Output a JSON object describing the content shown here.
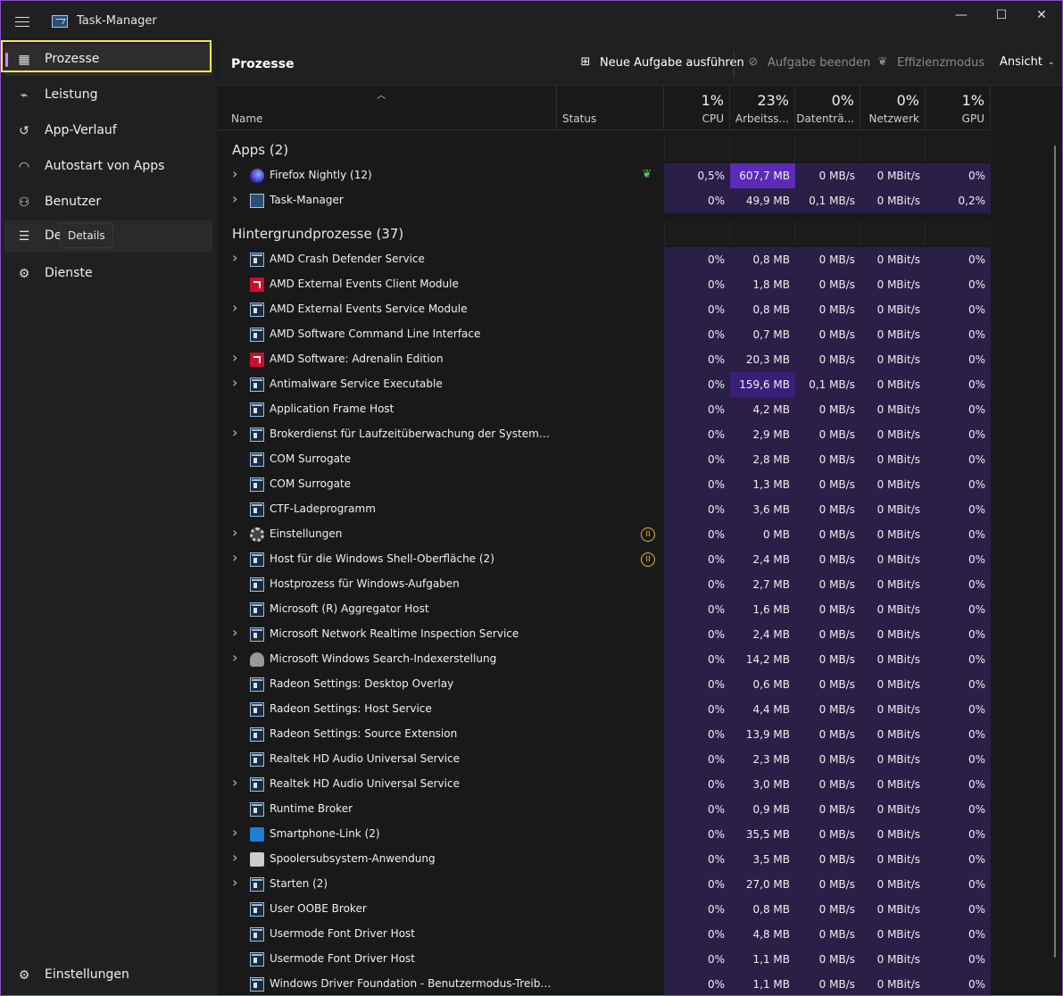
{
  "window": {
    "title": "Task-Manager",
    "minimize": "—",
    "maximize": "☐",
    "close": "✕"
  },
  "sidebar": {
    "items": [
      {
        "label": "Prozesse",
        "icon": "processes-icon"
      },
      {
        "label": "Leistung",
        "icon": "performance-icon"
      },
      {
        "label": "App-Verlauf",
        "icon": "app-history-icon"
      },
      {
        "label": "Autostart von Apps",
        "icon": "startup-icon"
      },
      {
        "label": "Benutzer",
        "icon": "users-icon"
      },
      {
        "label": "De",
        "icon": "details-icon"
      },
      {
        "label": "Dienste",
        "icon": "services-icon"
      }
    ],
    "tooltip": "Details",
    "settings": "Einstellungen"
  },
  "toolbar": {
    "title": "Prozesse",
    "new_task": "Neue Aufgabe ausführen",
    "end_task": "Aufgabe beenden",
    "efficiency": "Effizienzmodus",
    "view": "Ansicht"
  },
  "columns": {
    "name": "Name",
    "status": "Status",
    "cpu": {
      "pct": "1%",
      "label": "CPU"
    },
    "mem": {
      "pct": "23%",
      "label": "Arbeitss..."
    },
    "disk": {
      "pct": "0%",
      "label": "Datenträ..."
    },
    "net": {
      "pct": "0%",
      "label": "Netzwerk"
    },
    "gpu": {
      "pct": "1%",
      "label": "GPU"
    }
  },
  "groups": {
    "apps": "Apps (2)",
    "background": "Hintergrundprozesse (37)"
  },
  "apps": [
    {
      "name": "Firefox Nightly (12)",
      "icon": "ff",
      "expand": true,
      "status": "eco",
      "cpu": "0,5%",
      "mem": "607,7 MB",
      "disk": "0 MB/s",
      "net": "0 MBit/s",
      "gpu": "0%"
    },
    {
      "name": "Task-Manager",
      "icon": "tm",
      "expand": true,
      "status": "",
      "cpu": "0%",
      "mem": "49,9 MB",
      "disk": "0,1 MB/s",
      "net": "0 MBit/s",
      "gpu": "0,2%"
    }
  ],
  "background": [
    {
      "name": "AMD Crash Defender Service",
      "icon": "svc",
      "expand": true,
      "status": "",
      "cpu": "0%",
      "mem": "0,8 MB",
      "disk": "0 MB/s",
      "net": "0 MBit/s",
      "gpu": "0%"
    },
    {
      "name": "AMD External Events Client Module",
      "icon": "amd",
      "expand": false,
      "status": "",
      "cpu": "0%",
      "mem": "1,8 MB",
      "disk": "0 MB/s",
      "net": "0 MBit/s",
      "gpu": "0%"
    },
    {
      "name": "AMD External Events Service Module",
      "icon": "svc",
      "expand": true,
      "status": "",
      "cpu": "0%",
      "mem": "0,8 MB",
      "disk": "0 MB/s",
      "net": "0 MBit/s",
      "gpu": "0%"
    },
    {
      "name": "AMD Software Command Line Interface",
      "icon": "svc",
      "expand": false,
      "status": "",
      "cpu": "0%",
      "mem": "0,7 MB",
      "disk": "0 MB/s",
      "net": "0 MBit/s",
      "gpu": "0%"
    },
    {
      "name": "AMD Software: Adrenalin Edition",
      "icon": "amd",
      "expand": true,
      "status": "",
      "cpu": "0%",
      "mem": "20,3 MB",
      "disk": "0 MB/s",
      "net": "0 MBit/s",
      "gpu": "0%"
    },
    {
      "name": "Antimalware Service Executable",
      "icon": "svc",
      "expand": true,
      "status": "",
      "cpu": "0%",
      "mem": "159,6 MB",
      "disk": "0,1 MB/s",
      "net": "0 MBit/s",
      "gpu": "0%"
    },
    {
      "name": "Application Frame Host",
      "icon": "svc",
      "expand": false,
      "status": "",
      "cpu": "0%",
      "mem": "4,2 MB",
      "disk": "0 MB/s",
      "net": "0 MBit/s",
      "gpu": "0%"
    },
    {
      "name": "Brokerdienst für Laufzeitüberwachung der Systemüberwac...",
      "icon": "svc",
      "expand": true,
      "status": "",
      "cpu": "0%",
      "mem": "2,9 MB",
      "disk": "0 MB/s",
      "net": "0 MBit/s",
      "gpu": "0%"
    },
    {
      "name": "COM Surrogate",
      "icon": "svc",
      "expand": false,
      "status": "",
      "cpu": "0%",
      "mem": "2,8 MB",
      "disk": "0 MB/s",
      "net": "0 MBit/s",
      "gpu": "0%"
    },
    {
      "name": "COM Surrogate",
      "icon": "svc",
      "expand": false,
      "status": "",
      "cpu": "0%",
      "mem": "1,3 MB",
      "disk": "0 MB/s",
      "net": "0 MBit/s",
      "gpu": "0%"
    },
    {
      "name": "CTF-Ladeprogramm",
      "icon": "svc",
      "expand": false,
      "status": "",
      "cpu": "0%",
      "mem": "3,6 MB",
      "disk": "0 MB/s",
      "net": "0 MBit/s",
      "gpu": "0%"
    },
    {
      "name": "Einstellungen",
      "icon": "gear",
      "expand": true,
      "status": "pause",
      "cpu": "0%",
      "mem": "0 MB",
      "disk": "0 MB/s",
      "net": "0 MBit/s",
      "gpu": "0%"
    },
    {
      "name": "Host für die Windows Shell-Oberfläche (2)",
      "icon": "svc",
      "expand": true,
      "status": "pause",
      "cpu": "0%",
      "mem": "2,4 MB",
      "disk": "0 MB/s",
      "net": "0 MBit/s",
      "gpu": "0%"
    },
    {
      "name": "Hostprozess für Windows-Aufgaben",
      "icon": "svc",
      "expand": false,
      "status": "",
      "cpu": "0%",
      "mem": "2,7 MB",
      "disk": "0 MB/s",
      "net": "0 MBit/s",
      "gpu": "0%"
    },
    {
      "name": "Microsoft (R) Aggregator Host",
      "icon": "svc",
      "expand": false,
      "status": "",
      "cpu": "0%",
      "mem": "1,6 MB",
      "disk": "0 MB/s",
      "net": "0 MBit/s",
      "gpu": "0%"
    },
    {
      "name": "Microsoft Network Realtime Inspection Service",
      "icon": "svc",
      "expand": true,
      "status": "",
      "cpu": "0%",
      "mem": "2,4 MB",
      "disk": "0 MB/s",
      "net": "0 MBit/s",
      "gpu": "0%"
    },
    {
      "name": "Microsoft Windows Search-Indexerstellung",
      "icon": "search",
      "expand": true,
      "status": "",
      "cpu": "0%",
      "mem": "14,2 MB",
      "disk": "0 MB/s",
      "net": "0 MBit/s",
      "gpu": "0%"
    },
    {
      "name": "Radeon Settings: Desktop Overlay",
      "icon": "svc",
      "expand": false,
      "status": "",
      "cpu": "0%",
      "mem": "0,6 MB",
      "disk": "0 MB/s",
      "net": "0 MBit/s",
      "gpu": "0%"
    },
    {
      "name": "Radeon Settings: Host Service",
      "icon": "svc",
      "expand": false,
      "status": "",
      "cpu": "0%",
      "mem": "4,4 MB",
      "disk": "0 MB/s",
      "net": "0 MBit/s",
      "gpu": "0%"
    },
    {
      "name": "Radeon Settings: Source Extension",
      "icon": "svc",
      "expand": false,
      "status": "",
      "cpu": "0%",
      "mem": "13,9 MB",
      "disk": "0 MB/s",
      "net": "0 MBit/s",
      "gpu": "0%"
    },
    {
      "name": "Realtek HD Audio Universal Service",
      "icon": "svc",
      "expand": false,
      "status": "",
      "cpu": "0%",
      "mem": "2,3 MB",
      "disk": "0 MB/s",
      "net": "0 MBit/s",
      "gpu": "0%"
    },
    {
      "name": "Realtek HD Audio Universal Service",
      "icon": "svc",
      "expand": true,
      "status": "",
      "cpu": "0%",
      "mem": "3,0 MB",
      "disk": "0 MB/s",
      "net": "0 MBit/s",
      "gpu": "0%"
    },
    {
      "name": "Runtime Broker",
      "icon": "svc",
      "expand": false,
      "status": "",
      "cpu": "0%",
      "mem": "0,9 MB",
      "disk": "0 MB/s",
      "net": "0 MBit/s",
      "gpu": "0%"
    },
    {
      "name": "Smartphone-Link (2)",
      "icon": "phone",
      "expand": true,
      "status": "",
      "cpu": "0%",
      "mem": "35,5 MB",
      "disk": "0 MB/s",
      "net": "0 MBit/s",
      "gpu": "0%"
    },
    {
      "name": "Spoolersubsystem-Anwendung",
      "icon": "print",
      "expand": true,
      "status": "",
      "cpu": "0%",
      "mem": "3,5 MB",
      "disk": "0 MB/s",
      "net": "0 MBit/s",
      "gpu": "0%"
    },
    {
      "name": "Starten (2)",
      "icon": "svc",
      "expand": true,
      "status": "",
      "cpu": "0%",
      "mem": "27,0 MB",
      "disk": "0 MB/s",
      "net": "0 MBit/s",
      "gpu": "0%"
    },
    {
      "name": "User OOBE Broker",
      "icon": "svc",
      "expand": false,
      "status": "",
      "cpu": "0%",
      "mem": "0,8 MB",
      "disk": "0 MB/s",
      "net": "0 MBit/s",
      "gpu": "0%"
    },
    {
      "name": "Usermode Font Driver Host",
      "icon": "svc",
      "expand": false,
      "status": "",
      "cpu": "0%",
      "mem": "4,8 MB",
      "disk": "0 MB/s",
      "net": "0 MBit/s",
      "gpu": "0%"
    },
    {
      "name": "Usermode Font Driver Host",
      "icon": "svc",
      "expand": false,
      "status": "",
      "cpu": "0%",
      "mem": "1,1 MB",
      "disk": "0 MB/s",
      "net": "0 MBit/s",
      "gpu": "0%"
    },
    {
      "name": "Windows Driver Foundation - Benutzermodus-Treiberfram...",
      "icon": "svc",
      "expand": false,
      "status": "",
      "cpu": "0%",
      "mem": "1,1 MB",
      "disk": "0 MB/s",
      "net": "0 MBit/s",
      "gpu": "0%"
    }
  ],
  "colors": {
    "accent": "#c38df2",
    "cell": "#2a1f47",
    "cell_mid": "#3a1f7a",
    "cell_hi": "#5a2bb8",
    "highlight": "#f5e84a"
  }
}
